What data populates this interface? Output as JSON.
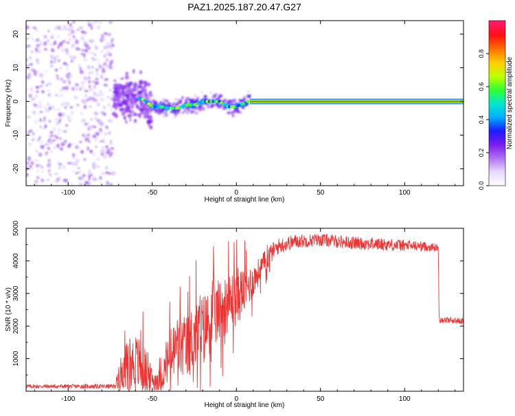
{
  "title": "PAZ1.2025.187.20.47.G27",
  "chart_data": [
    {
      "type": "heatmap",
      "title": "",
      "xlabel": "Height of straight line (km)",
      "ylabel": "Frequency (Hz)",
      "xlim": [
        -125,
        135
      ],
      "ylim": [
        -25,
        24
      ],
      "xticks": [
        -100,
        -50,
        0,
        50,
        100
      ],
      "yticks": [
        -20,
        -10,
        0,
        10,
        20
      ],
      "colorbar": {
        "label": "Normalized spectral amplitude",
        "range": [
          0,
          1
        ],
        "ticks": [
          0.0,
          0.2,
          0.4,
          0.6,
          0.8
        ],
        "colormap": [
          "#ffffff",
          "#e8d8ff",
          "#b070f0",
          "#7a1cf0",
          "#1a1aff",
          "#00b0ff",
          "#00e8d0",
          "#30ff30",
          "#c0ff00",
          "#ffd000",
          "#ff7000",
          "#ff1010",
          "#ff1a70"
        ]
      },
      "regions": [
        {
          "x_range": [
            -125,
            -73
          ],
          "description_level": "noise",
          "freq_spread": [
            -25,
            24
          ],
          "amplitude": 0.05
        },
        {
          "x_range": [
            -73,
            -50
          ],
          "description_level": "scatter",
          "freq_spread": [
            -10,
            8
          ],
          "amplitude": 0.2
        },
        {
          "x_range": [
            -50,
            8
          ],
          "description_level": "tracking",
          "freq_spread": [
            -4,
            3
          ],
          "amplitude": 0.45
        },
        {
          "x_range": [
            8,
            135
          ],
          "description_level": "locked",
          "freq_spread": [
            -0.8,
            0.8
          ],
          "amplitude": 0.95
        }
      ],
      "center_track": [
        {
          "x": -62,
          "y": 1.5
        },
        {
          "x": -55,
          "y": 0.5
        },
        {
          "x": -50,
          "y": -1.5
        },
        {
          "x": -45,
          "y": -1.5
        },
        {
          "x": -40,
          "y": -2.0
        },
        {
          "x": -35,
          "y": -2.0
        },
        {
          "x": -30,
          "y": -1.0
        },
        {
          "x": -25,
          "y": -1.0
        },
        {
          "x": -20,
          "y": 0.0
        },
        {
          "x": -15,
          "y": 0.0
        },
        {
          "x": -10,
          "y": 0.0
        },
        {
          "x": -5,
          "y": -1.5
        },
        {
          "x": 0,
          "y": -1.5
        },
        {
          "x": 5,
          "y": -0.5
        },
        {
          "x": 8,
          "y": 0.5
        },
        {
          "x": 15,
          "y": 0.0
        },
        {
          "x": 135,
          "y": 0.0
        }
      ]
    },
    {
      "type": "line",
      "title": "",
      "xlabel": "Height of straight line (km)",
      "ylabel": "SNR (10 * v/v)",
      "xlim": [
        -125,
        135
      ],
      "ylim": [
        0,
        5000
      ],
      "xticks": [
        -100,
        -50,
        0,
        50,
        100
      ],
      "yticks": [
        1000,
        2000,
        3000,
        4000,
        5000
      ],
      "series": [
        {
          "color": "#ee3333",
          "envelope": [
            {
              "x": -125,
              "base": 150,
              "amp": 60
            },
            {
              "x": -72,
              "base": 150,
              "amp": 70
            },
            {
              "x": -70,
              "base": 500,
              "amp": 400
            },
            {
              "x": -65,
              "base": 800,
              "amp": 700
            },
            {
              "x": -60,
              "base": 900,
              "amp": 900
            },
            {
              "x": -55,
              "base": 700,
              "amp": 800
            },
            {
              "x": -50,
              "base": 350,
              "amp": 300
            },
            {
              "x": -45,
              "base": 350,
              "amp": 350
            },
            {
              "x": -40,
              "base": 1000,
              "amp": 800
            },
            {
              "x": -35,
              "base": 1400,
              "amp": 1000
            },
            {
              "x": -30,
              "base": 1300,
              "amp": 1000
            },
            {
              "x": -25,
              "base": 1700,
              "amp": 1100
            },
            {
              "x": -20,
              "base": 1900,
              "amp": 1100
            },
            {
              "x": -15,
              "base": 2200,
              "amp": 1000
            },
            {
              "x": -10,
              "base": 2500,
              "amp": 1000
            },
            {
              "x": -5,
              "base": 2700,
              "amp": 900
            },
            {
              "x": 0,
              "base": 2900,
              "amp": 900
            },
            {
              "x": 5,
              "base": 3100,
              "amp": 700
            },
            {
              "x": 10,
              "base": 3400,
              "amp": 500
            },
            {
              "x": 15,
              "base": 3800,
              "amp": 400
            },
            {
              "x": 20,
              "base": 4200,
              "amp": 300
            },
            {
              "x": 25,
              "base": 4450,
              "amp": 250
            },
            {
              "x": 35,
              "base": 4600,
              "amp": 220
            },
            {
              "x": 50,
              "base": 4650,
              "amp": 200
            },
            {
              "x": 70,
              "base": 4550,
              "amp": 200
            },
            {
              "x": 90,
              "base": 4500,
              "amp": 200
            },
            {
              "x": 110,
              "base": 4450,
              "amp": 150
            },
            {
              "x": 120,
              "base": 4400,
              "amp": 120
            },
            {
              "x": 120.5,
              "base": 2200,
              "amp": 100
            },
            {
              "x": 135,
              "base": 2150,
              "amp": 100
            }
          ]
        }
      ]
    }
  ]
}
